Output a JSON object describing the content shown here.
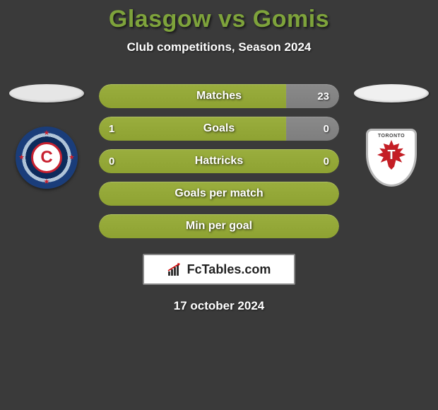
{
  "title": "Glasgow vs Gomis",
  "subtitle": "Club competitions, Season 2024",
  "colors": {
    "title": "#7ea33b",
    "accent_green": "#9aae3e",
    "neutral_gray": "#8a8a8a",
    "ellipse_left": "#e6e6e6",
    "ellipse_right": "#f0f0f0",
    "background": "#3a3a3a"
  },
  "left_club": {
    "name": "chicago-fire",
    "primary": "#0d2b5c",
    "accent": "#c8202f",
    "letter": "C"
  },
  "right_club": {
    "name": "toronto-fc",
    "primary": "#c41e25",
    "top_text": "TORONTO",
    "letter": "T"
  },
  "bars": [
    {
      "label": "Matches",
      "left_value": "",
      "right_value": "23",
      "left_width_pct": 78,
      "left_color": "#9aae3e",
      "right_color": "#8a8a8a",
      "split": true
    },
    {
      "label": "Goals",
      "left_value": "1",
      "right_value": "0",
      "left_width_pct": 78,
      "left_color": "#9aae3e",
      "right_color": "#8a8a8a",
      "split": true
    },
    {
      "label": "Hattricks",
      "left_value": "0",
      "right_value": "0",
      "left_width_pct": 100,
      "left_color": "#9aae3e",
      "right_color": "#9aae3e",
      "split": false
    },
    {
      "label": "Goals per match",
      "left_value": "",
      "right_value": "",
      "left_width_pct": 100,
      "left_color": "#9aae3e",
      "right_color": "#9aae3e",
      "split": false
    },
    {
      "label": "Min per goal",
      "left_value": "",
      "right_value": "",
      "left_width_pct": 100,
      "left_color": "#9aae3e",
      "right_color": "#9aae3e",
      "split": false
    }
  ],
  "brand": {
    "text": "FcTables.com"
  },
  "date": "17 october 2024"
}
